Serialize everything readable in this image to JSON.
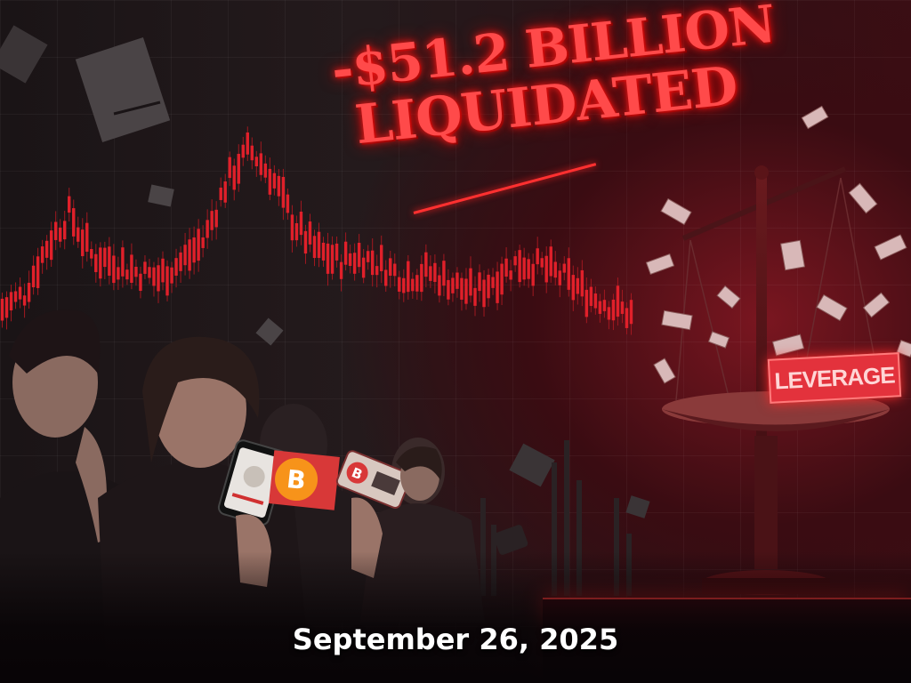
{
  "headline": {
    "line1": "-$51.2 BILLION",
    "line2": "LIQUIDATED"
  },
  "scale_label": "LEVERAGE",
  "date": "September 26, 2025",
  "coin_symbol": "B",
  "colors": {
    "accent": "#ff3030",
    "candle_down": "#e0202a",
    "bitcoin_orange": "#f7931a"
  },
  "chart_data": {
    "type": "candlestick",
    "trend": [
      34,
      40,
      58,
      70,
      54,
      52,
      48,
      46,
      52,
      60,
      82,
      94,
      84,
      66,
      56,
      52,
      54,
      50,
      46,
      48,
      44,
      40,
      46,
      52,
      50,
      46,
      40,
      36,
      32
    ]
  }
}
